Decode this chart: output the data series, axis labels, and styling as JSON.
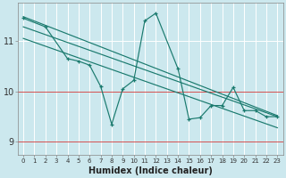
{
  "xlabel": "Humidex (Indice chaleur)",
  "bg_color": "#cce8ee",
  "grid_color": "#ffffff",
  "line_color": "#1a7a6e",
  "x_min": -0.5,
  "x_max": 23.5,
  "y_min": 8.75,
  "y_max": 11.75,
  "yticks": [
    9,
    10,
    11
  ],
  "xticks": [
    0,
    1,
    2,
    3,
    4,
    5,
    6,
    7,
    8,
    9,
    10,
    11,
    12,
    13,
    14,
    15,
    16,
    17,
    18,
    19,
    20,
    21,
    22,
    23
  ],
  "red_lines": [
    9,
    10
  ],
  "series_main": {
    "x": [
      0,
      2,
      4,
      5,
      6,
      7,
      8,
      9,
      10,
      11,
      12,
      14,
      15,
      16,
      17,
      18,
      19,
      20,
      21,
      22,
      23
    ],
    "y": [
      11.45,
      11.28,
      10.65,
      10.6,
      10.52,
      10.1,
      9.35,
      10.05,
      10.22,
      11.4,
      11.55,
      10.45,
      9.45,
      9.48,
      9.72,
      9.72,
      10.08,
      9.62,
      9.62,
      9.5,
      9.5
    ]
  },
  "trend_line1": {
    "x": [
      0,
      23
    ],
    "y": [
      11.48,
      9.52
    ]
  },
  "trend_line2": {
    "x": [
      0,
      23
    ],
    "y": [
      11.28,
      9.5
    ]
  },
  "trend_line3": {
    "x": [
      0,
      23
    ],
    "y": [
      11.05,
      9.28
    ]
  }
}
